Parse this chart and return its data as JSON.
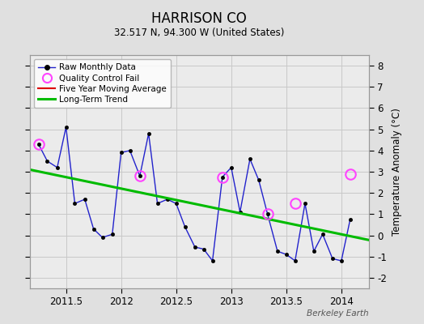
{
  "title": "HARRISON CO",
  "subtitle": "32.517 N, 94.300 W (United States)",
  "ylabel": "Temperature Anomaly (°C)",
  "watermark": "Berkeley Earth",
  "xlim": [
    2011.17,
    2014.25
  ],
  "ylim": [
    -2.5,
    8.5
  ],
  "yticks": [
    -2,
    -1,
    0,
    1,
    2,
    3,
    4,
    5,
    6,
    7,
    8
  ],
  "xticks": [
    2011.5,
    2012.0,
    2012.5,
    2013.0,
    2013.5,
    2014.0
  ],
  "xticklabels": [
    "2011.5",
    "2012",
    "2012.5",
    "2013",
    "2013.5",
    "2014"
  ],
  "background_color": "#e0e0e0",
  "plot_bg_color": "#ebebeb",
  "raw_x": [
    2011.25,
    2011.33,
    2011.42,
    2011.5,
    2011.58,
    2011.67,
    2011.75,
    2011.83,
    2011.92,
    2012.0,
    2012.08,
    2012.17,
    2012.25,
    2012.33,
    2012.42,
    2012.5,
    2012.58,
    2012.67,
    2012.75,
    2012.83,
    2012.92,
    2013.0,
    2013.08,
    2013.17,
    2013.25,
    2013.33,
    2013.42,
    2013.5,
    2013.58,
    2013.67,
    2013.75,
    2013.83,
    2013.92,
    2014.0,
    2014.08
  ],
  "raw_y": [
    4.3,
    3.5,
    3.2,
    5.1,
    1.5,
    1.7,
    0.3,
    -0.1,
    0.05,
    3.9,
    4.0,
    2.8,
    4.8,
    1.5,
    1.7,
    1.5,
    0.4,
    -0.55,
    -0.65,
    -1.2,
    2.75,
    3.2,
    1.1,
    3.6,
    2.6,
    1.0,
    -0.75,
    -0.9,
    -1.2,
    1.5,
    -0.75,
    0.05,
    -1.1,
    -1.2,
    0.75
  ],
  "qc_fail_x": [
    2011.25,
    2012.17,
    2012.92,
    2013.33,
    2013.58,
    2014.08
  ],
  "qc_fail_y": [
    4.3,
    2.8,
    2.75,
    1.0,
    1.5,
    2.9
  ],
  "trend_x": [
    2011.17,
    2014.25
  ],
  "trend_y": [
    3.1,
    -0.22
  ],
  "line_color": "#2222cc",
  "dot_color": "#000000",
  "trend_color": "#00bb00",
  "qc_color": "#ff44ff",
  "ma_color": "#dd0000",
  "grid_color": "#c8c8c8"
}
